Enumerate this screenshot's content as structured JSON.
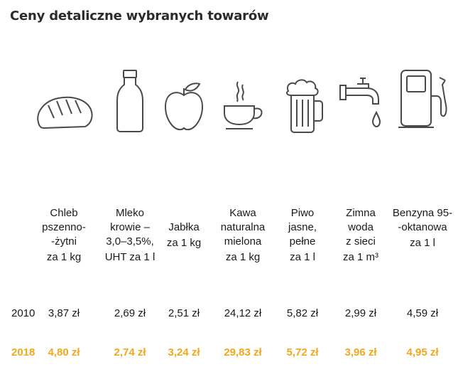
{
  "title": "Ceny detaliczne wybranych towarów",
  "colors": {
    "highlight": "#f2a81d",
    "icon_stroke": "#4a4a4a"
  },
  "years": {
    "y1": "2010",
    "y2": "2018"
  },
  "products": [
    {
      "icon": "bread-icon",
      "name": "Chleb\npszenno-\n-żytni",
      "unit": "za 1 kg",
      "v2010": "3,87 zł",
      "v2018": "4,80 zł"
    },
    {
      "icon": "milk-bottle-icon",
      "name": "Mleko\nkrowie –\n3,0–3,5%,",
      "unit": "UHT za 1 l",
      "v2010": "2,69 zł",
      "v2018": "2,74 zł"
    },
    {
      "icon": "apple-icon",
      "name": "Jabłka",
      "unit": "za 1 kg",
      "v2010": "2,51 zł",
      "v2018": "3,24 zł"
    },
    {
      "icon": "coffee-cup-icon",
      "name": "Kawa\nnaturalna\nmielona",
      "unit": "za 1 kg",
      "v2010": "24,12 zł",
      "v2018": "29,83 zł"
    },
    {
      "icon": "beer-mug-icon",
      "name": "Piwo\njasne,\npełne",
      "unit": "za 1 l",
      "v2010": "5,82 zł",
      "v2018": "5,72 zł"
    },
    {
      "icon": "water-tap-icon",
      "name": "Zimna\nwoda\nz sieci",
      "unit": "za 1 m³",
      "v2010": "2,99 zł",
      "v2018": "3,96 zł"
    },
    {
      "icon": "fuel-pump-icon",
      "name": "Benzyna 95-\n-oktanowa",
      "unit": "za 1 l",
      "v2010": "4,59 zł",
      "v2018": "4,95 zł"
    }
  ]
}
